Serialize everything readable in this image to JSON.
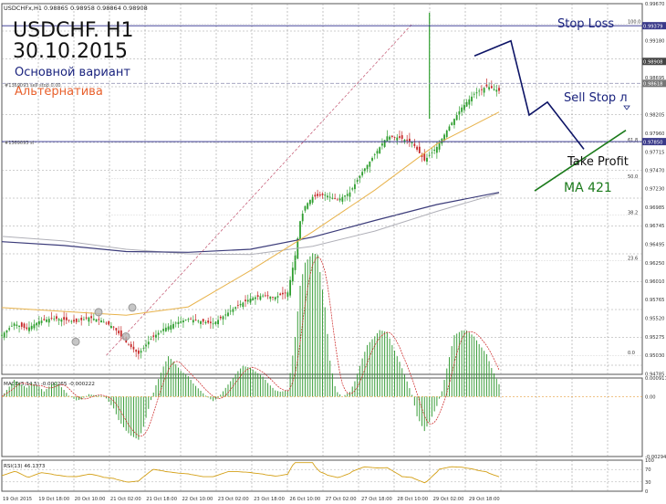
{
  "symbol_header": "USDCHFx,H1  0.98865 0.98958 0.98864 0.98908",
  "title": "USDCHF. H1",
  "date": "30.10.2015",
  "legend": {
    "main": "Основной вариант",
    "alternative": "Альтернатива",
    "main_color": "#1a237e",
    "alt_color": "#e8602c"
  },
  "colors": {
    "bull_candle": "#2e9e2e",
    "bear_candle": "#c62828",
    "grid": "#9e9e9e",
    "ma_navy": "#3c3c7a",
    "ma_gray": "#b0b0b8",
    "ma_orange": "#e8b34c",
    "fib": "#c0506c",
    "forecast_main": "#0d1466",
    "forecast_ma": "#1b7a1b",
    "macd_hist": "#3a9e3a",
    "macd_signal": "#cc2222",
    "rsi": "#d4a017"
  },
  "annotations": {
    "stop_loss": "Stop Loss",
    "sell_stop": "Sell Stop л",
    "take_profit": "Take Profit",
    "ma421": "MA 421"
  },
  "levels_labels": {
    "stop_loss_price": "0.99379",
    "sell_stop_price": "0.98618",
    "take_profit_price": "0.97850",
    "current_price": "0.98908",
    "small_label_1": "#1369093 sell stop 0.00",
    "small_label_2": "#1369093 sl"
  },
  "chart_data": {
    "type": "line",
    "main": {
      "ylim": [
        0.9478,
        0.9967
      ],
      "ytick_labels": [
        "0.99670",
        "0.99379",
        "0.99180",
        "0.98908",
        "0.98695",
        "0.98618",
        "0.98205",
        "0.97960",
        "0.97850",
        "0.97715",
        "0.97470",
        "0.97230",
        "0.96985",
        "0.96745",
        "0.96495",
        "0.96250",
        "0.96010",
        "0.95765",
        "0.95520",
        "0.95275",
        "0.95030",
        "0.94785"
      ],
      "price_path_x": [
        0,
        5,
        10,
        15,
        20,
        25,
        30,
        35,
        40,
        45,
        50,
        55,
        60,
        65,
        70,
        75,
        80,
        85,
        90,
        95,
        100,
        105,
        110,
        115,
        118,
        120,
        122,
        125,
        130,
        135,
        140,
        145,
        150,
        155,
        160,
        165,
        170,
        175,
        180,
        185,
        190,
        195,
        200
      ],
      "price_path_y": [
        0.953,
        0.9545,
        0.9538,
        0.9548,
        0.9552,
        0.955,
        0.9547,
        0.9553,
        0.9549,
        0.954,
        0.952,
        0.9505,
        0.9525,
        0.9538,
        0.9546,
        0.9551,
        0.9548,
        0.9545,
        0.9557,
        0.9569,
        0.9578,
        0.9582,
        0.958,
        0.9586,
        0.9635,
        0.968,
        0.97,
        0.9712,
        0.9715,
        0.9708,
        0.9718,
        0.9745,
        0.9768,
        0.9792,
        0.979,
        0.9784,
        0.976,
        0.9778,
        0.9805,
        0.983,
        0.9848,
        0.9858,
        0.9852
      ],
      "ma_gray": [
        0.966,
        0.9654,
        0.9643,
        0.9637,
        0.9636,
        0.9647,
        0.9667,
        0.9693,
        0.9717
      ],
      "ma_navy": [
        0.9653,
        0.9648,
        0.964,
        0.9639,
        0.9643,
        0.9659,
        0.9681,
        0.9702,
        0.9718
      ],
      "ma_orange": [
        0.9566,
        0.9561,
        0.9556,
        0.9567,
        0.9615,
        0.9666,
        0.9721,
        0.9782,
        0.9824
      ],
      "fib_levels": [
        {
          "label": "100.0",
          "value": 0.994
        },
        {
          "label": "61.8",
          "value": 0.9784
        },
        {
          "label": "50.0",
          "value": 0.9736
        },
        {
          "label": "38.2",
          "value": 0.9688
        },
        {
          "label": "23.6",
          "value": 0.9628
        },
        {
          "label": "0.0",
          "value": 0.9503
        }
      ],
      "forecast_main_x": [
        520,
        560,
        580,
        600,
        640
      ],
      "forecast_main_y": [
        0.9898,
        0.9918,
        0.982,
        0.9837,
        0.9775
      ],
      "forecast_ma_x": [
        586,
        686
      ],
      "forecast_ma_y": [
        0.972,
        0.98
      ]
    },
    "macd": {
      "label": "MACD(5,34,5) -0.000265 -0.000222",
      "ylim": [
        -0.002949,
        0.000917
      ],
      "ytick_labels": [
        "0.000917",
        "0.00",
        "-0.00294"
      ]
    },
    "rsi": {
      "label": "RSI(13) 46.1373",
      "ylim": [
        0,
        100
      ],
      "ytick_labels": [
        "100",
        "70",
        "30",
        "0"
      ]
    },
    "x_tick_labels": [
      "19 Oct 2015",
      "19 Oct 18:00",
      "20 Oct 10:00",
      "21 Oct 02:00",
      "21 Oct 18:00",
      "22 Oct 10:00",
      "23 Oct 02:00",
      "23 Oct 18:00",
      "26 Oct 10:00",
      "27 Oct 02:00",
      "27 Oct 18:00",
      "28 Oct 10:00",
      "29 Oct 02:00",
      "29 Oct 18:00"
    ]
  }
}
